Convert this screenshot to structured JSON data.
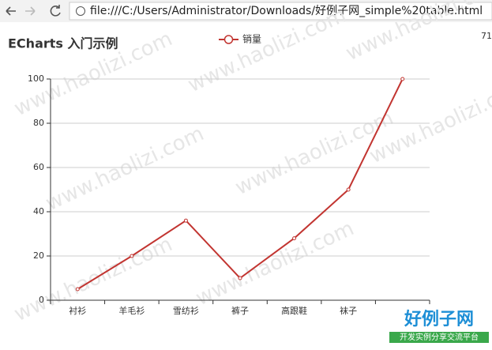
{
  "browser": {
    "url": "file:///C:/Users/Administrator/Downloads/好例子网_simple%20table.html"
  },
  "corner_text": "71",
  "watermark": "www.haolizi.com",
  "logo": {
    "title": "好例子网",
    "subtitle": "开发实例分享交流平台"
  },
  "chart_data": {
    "type": "line",
    "title": "ECharts 入门示例",
    "categories": [
      "衬衫",
      "羊毛衫",
      "雪纺衫",
      "裤子",
      "高跟鞋",
      "袜子",
      null
    ],
    "series": [
      {
        "name": "销量",
        "color": "#c23531",
        "values": [
          5,
          20,
          36,
          10,
          28,
          50,
          100
        ]
      }
    ],
    "ylim": [
      0,
      100
    ],
    "yticks": [
      0,
      20,
      40,
      60,
      80,
      100
    ],
    "grid": true
  }
}
